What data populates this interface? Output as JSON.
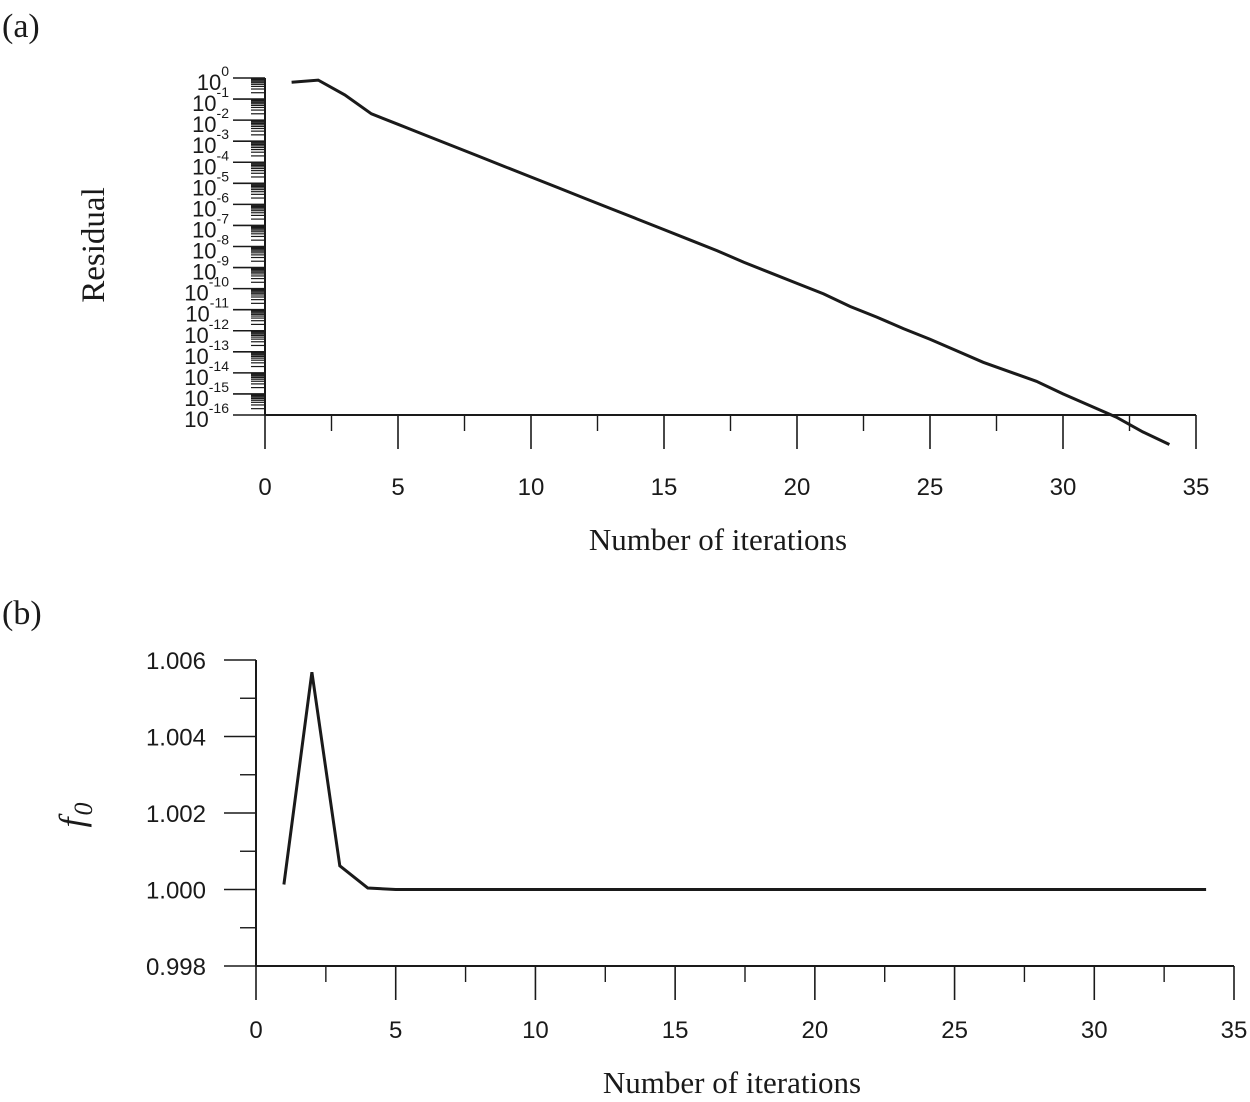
{
  "chart_data": [
    {
      "type": "line",
      "panel_label": "(a)",
      "title": "",
      "xlabel": "Number of iterations",
      "ylabel": "Residual",
      "yscale": "log",
      "xlim": [
        0,
        35
      ],
      "ylim_exponents": [
        -16,
        0
      ],
      "xticks": [
        "0",
        "5",
        "10",
        "15",
        "20",
        "25",
        "30",
        "35"
      ],
      "ytick_base": "10",
      "ytick_exponents": [
        "0",
        "-1",
        "-2",
        "-3",
        "-4",
        "-5",
        "-6",
        "-7",
        "-8",
        "-9",
        "-10",
        "-11",
        "-12",
        "-13",
        "-14",
        "-15",
        "-16"
      ],
      "x": [
        1,
        2,
        3,
        4,
        5,
        6,
        7,
        8,
        9,
        10,
        11,
        12,
        13,
        14,
        15,
        16,
        17,
        18,
        19,
        20,
        21,
        22,
        23,
        24,
        25,
        26,
        27,
        28,
        29,
        30,
        31,
        32,
        33,
        34
      ],
      "log10_values": [
        -0.2,
        -0.1,
        -0.8,
        -1.7,
        -2.2,
        -2.7,
        -3.2,
        -3.7,
        -4.2,
        -4.7,
        -5.2,
        -5.7,
        -6.2,
        -6.7,
        -7.2,
        -7.7,
        -8.2,
        -8.75,
        -9.25,
        -9.75,
        -10.25,
        -10.85,
        -11.35,
        -11.9,
        -12.4,
        -12.95,
        -13.5,
        -13.95,
        -14.4,
        -15.0,
        -15.55,
        -16.1,
        -16.8,
        -17.4
      ],
      "grid": false,
      "legend": "none"
    },
    {
      "type": "line",
      "panel_label": "(b)",
      "title": "",
      "xlabel": "Number of iterations",
      "ylabel": "f",
      "ylabel_subscript": "0",
      "xlim": [
        0,
        35
      ],
      "ylim": [
        0.998,
        1.006
      ],
      "xticks": [
        "0",
        "5",
        "10",
        "15",
        "20",
        "25",
        "30",
        "35"
      ],
      "yticks": [
        "0.998",
        "1.000",
        "1.002",
        "1.004",
        "1.006"
      ],
      "x": [
        1,
        2,
        3,
        4,
        5,
        6,
        7,
        8,
        9,
        10,
        11,
        12,
        13,
        14,
        15,
        16,
        17,
        18,
        19,
        20,
        21,
        22,
        23,
        24,
        25,
        26,
        27,
        28,
        29,
        30,
        31,
        32,
        33,
        34
      ],
      "values": [
        1.00013,
        1.00568,
        1.00062,
        1.00004,
        1.0,
        1.0,
        1.0,
        1.0,
        1.0,
        1.0,
        1.0,
        1.0,
        1.0,
        1.0,
        1.0,
        1.0,
        1.0,
        1.0,
        1.0,
        1.0,
        1.0,
        1.0,
        1.0,
        1.0,
        1.0,
        1.0,
        1.0,
        1.0,
        1.0,
        1.0,
        1.0,
        1.0,
        1.0,
        1.0
      ],
      "grid": false,
      "legend": "none"
    }
  ],
  "colors": {
    "line": "#1a1a1a",
    "axis": "#1a1a1a",
    "background": "#ffffff"
  }
}
